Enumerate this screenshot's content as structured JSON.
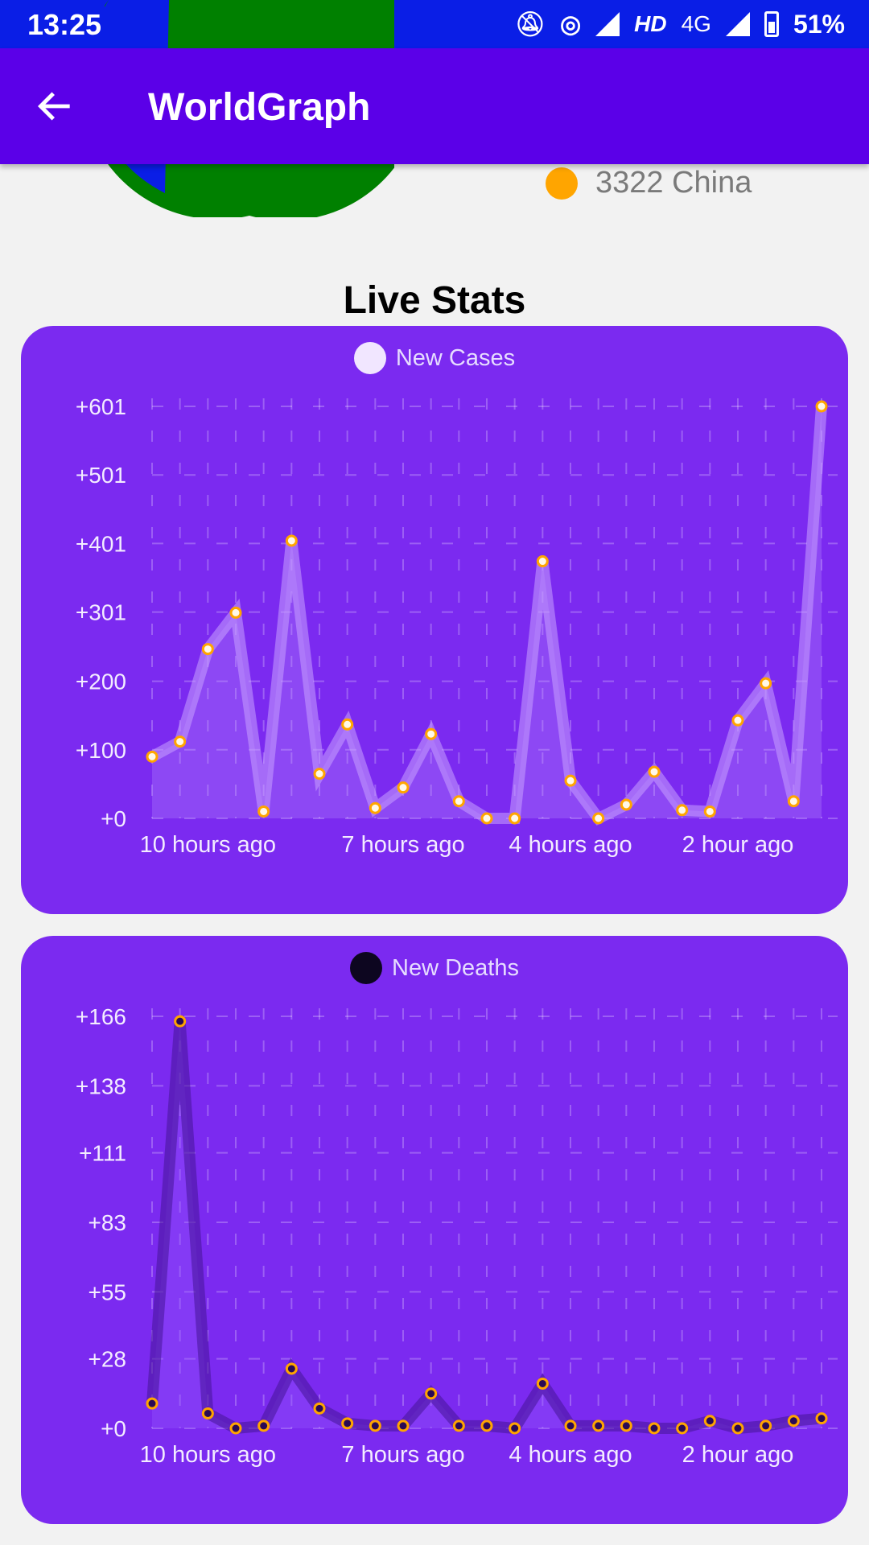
{
  "status_bar": {
    "time": "13:25",
    "left_icons": [
      "b-icon",
      "jio-icon",
      "circle-icon",
      "sparkle-icon",
      "dot-icon"
    ],
    "network": "HD",
    "network_type": "4G",
    "battery": "51%"
  },
  "app_bar": {
    "title": "WorldGraph",
    "back_icon": "arrow-back-icon"
  },
  "pie_legend": {
    "visible_item": "3322 China",
    "color": "#ffa500"
  },
  "section_title": "Live Stats",
  "chart_data": [
    {
      "type": "line",
      "title": "",
      "series": [
        {
          "name": "New Cases",
          "color": "#f1e6ff",
          "values": [
            90,
            112,
            247,
            300,
            10,
            405,
            65,
            137,
            15,
            45,
            123,
            25,
            0,
            0,
            375,
            55,
            0,
            20,
            68,
            12,
            10,
            143,
            197,
            25,
            601
          ]
        }
      ],
      "ytick_labels": [
        "+0",
        "+100",
        "+200",
        "+301",
        "+401",
        "+501",
        "+601"
      ],
      "ytick_values": [
        0,
        100,
        200,
        301,
        401,
        501,
        601
      ],
      "xtick_labels": [
        "10 hours ago",
        "7 hours ago",
        "4 hours ago",
        "2 hour ago"
      ],
      "ylim": [
        0,
        601
      ],
      "grid": true
    },
    {
      "type": "line",
      "title": "",
      "series": [
        {
          "name": "New Deaths",
          "color": "#0d0620",
          "values": [
            10,
            164,
            6,
            0,
            1,
            24,
            8,
            2,
            1,
            1,
            14,
            1,
            1,
            0,
            18,
            1,
            1,
            1,
            0,
            0,
            3,
            0,
            1,
            3,
            4
          ]
        }
      ],
      "ytick_labels": [
        "+0",
        "+28",
        "+55",
        "+83",
        "+111",
        "+138",
        "+166"
      ],
      "ytick_values": [
        0,
        28,
        55,
        83,
        111,
        138,
        166
      ],
      "xtick_labels": [
        "10 hours ago",
        "7 hours ago",
        "4 hours ago",
        "2 hour ago"
      ],
      "ylim": [
        0,
        166
      ],
      "grid": true
    }
  ]
}
